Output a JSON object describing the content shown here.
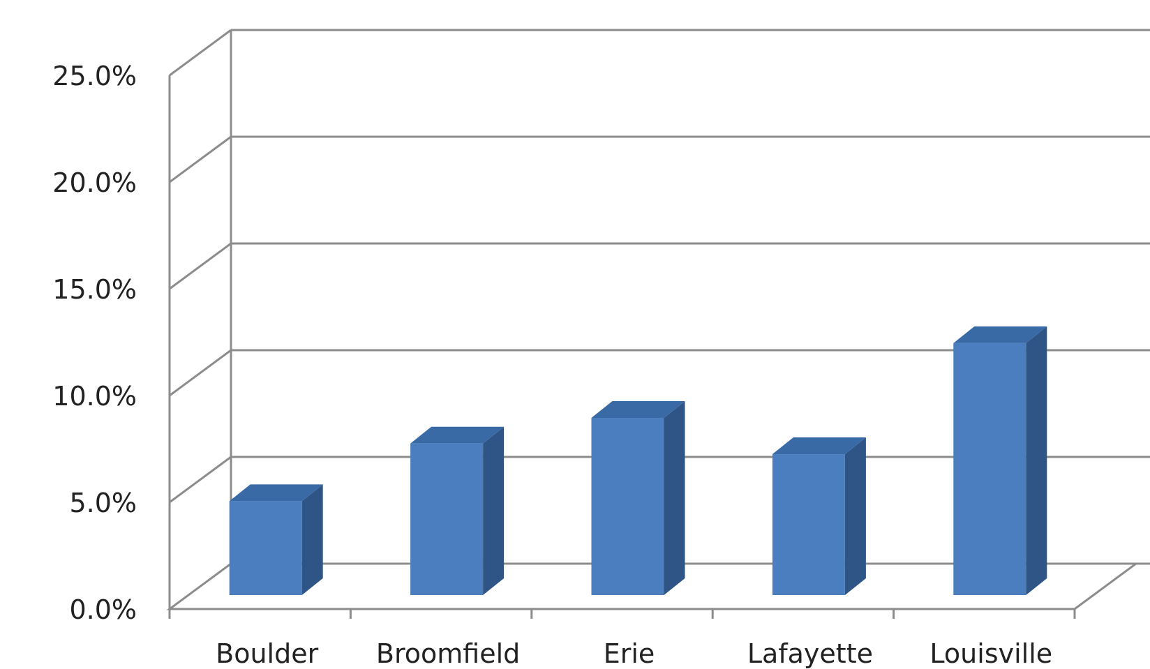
{
  "chart_data": {
    "type": "bar",
    "title": "",
    "xlabel": "",
    "ylabel": "",
    "categories": [
      "Boulder",
      "Broomfield",
      "Erie",
      "Lafayette",
      "Louisville"
    ],
    "series": [
      {
        "values": [
          4.4,
          7.1,
          8.3,
          6.6,
          11.8
        ]
      }
    ],
    "ylim": [
      0,
      25
    ],
    "yticks": [
      "0.0%",
      "5.0%",
      "10.0%",
      "15.0%",
      "20.0%",
      "25.0%"
    ],
    "grid": true,
    "legend": "none",
    "style": "3d-column",
    "colors": {
      "front": "#4a7ebf",
      "side": "#2e5586",
      "top": "#3a6aa5",
      "grid": "#8c8c8c"
    }
  }
}
